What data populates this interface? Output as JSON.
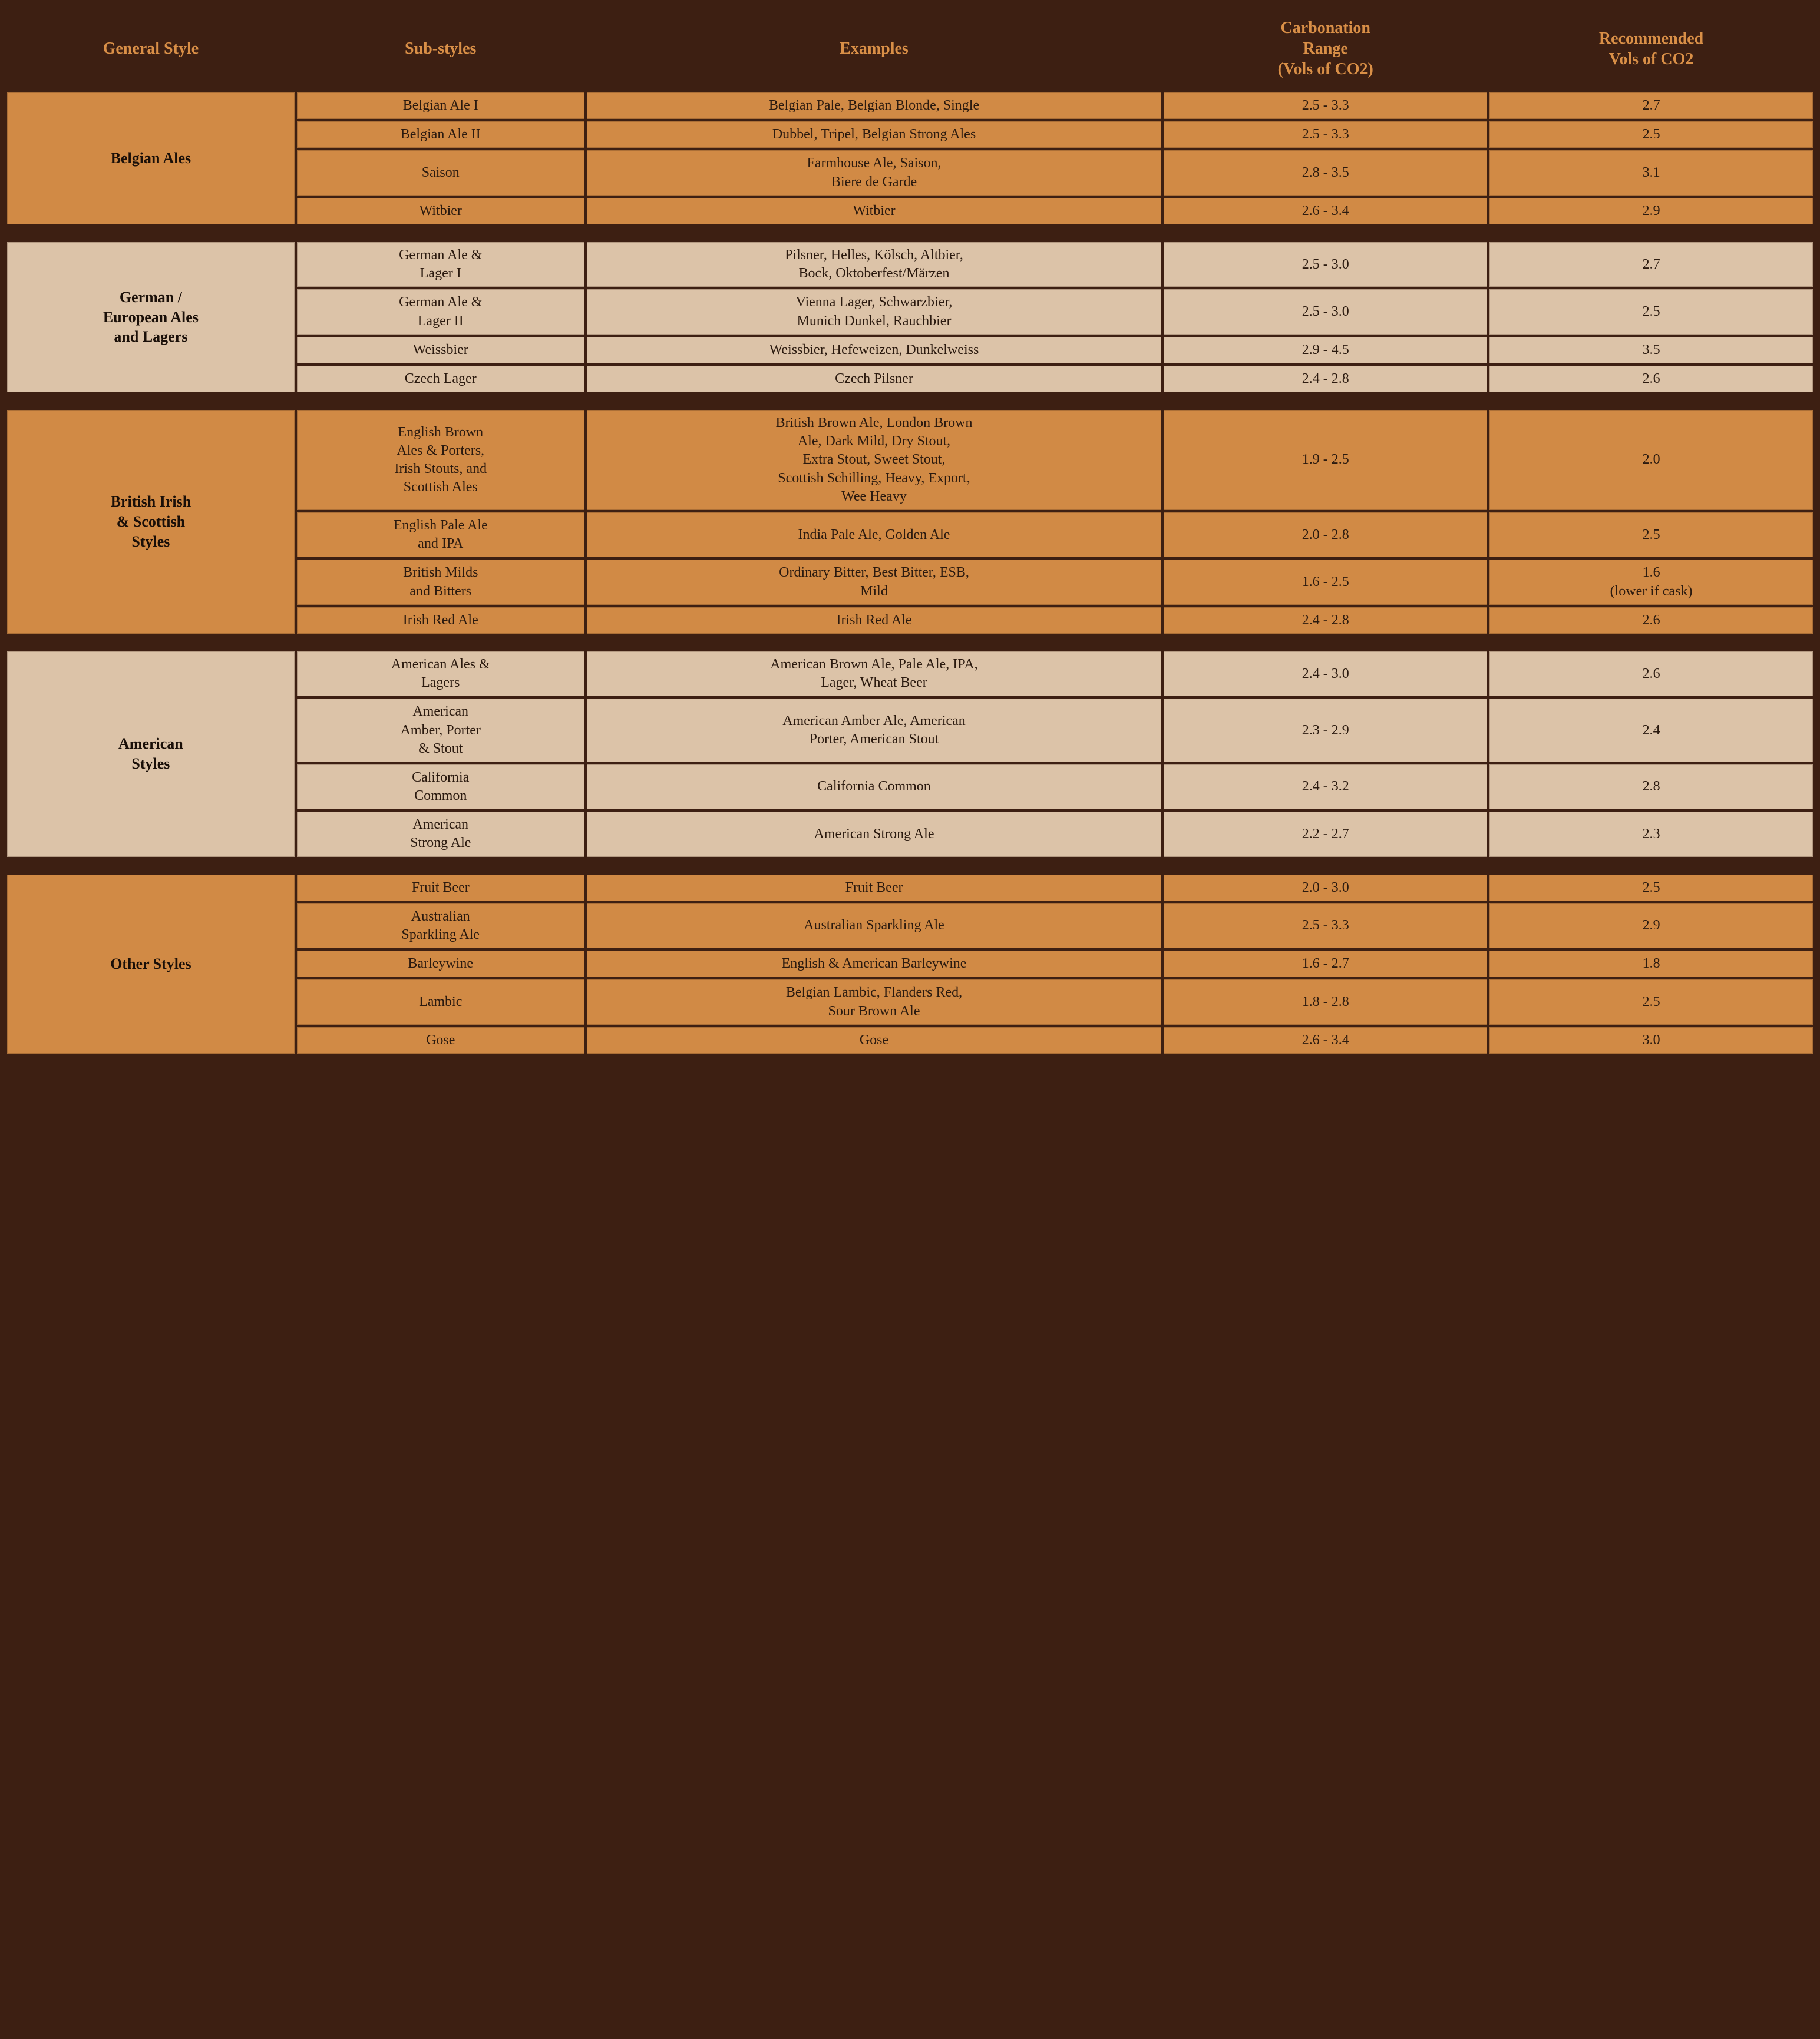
{
  "headers": {
    "general_style": "General Style",
    "sub_styles": "Sub-styles",
    "examples": "Examples",
    "carbonation_range": "Carbonation\nRange\n(Vols of CO2)",
    "recommended": "Recommended\nVols of CO2"
  },
  "colors": {
    "background": "#3d1f12",
    "header_text": "#d98f47",
    "orange_row": "#d18a45",
    "cream_row": "#dcc3a8",
    "cell_text": "#2b1a0f"
  },
  "sections": [
    {
      "style": "Belgian Ales",
      "shade": "orange",
      "rows": [
        {
          "sub": "Belgian Ale I",
          "ex": "Belgian Pale, Belgian Blonde, Single",
          "range": "2.5 - 3.3",
          "rec": "2.7"
        },
        {
          "sub": "Belgian Ale II",
          "ex": "Dubbel, Tripel, Belgian Strong Ales",
          "range": "2.5 - 3.3",
          "rec": "2.5"
        },
        {
          "sub": "Saison",
          "ex": "Farmhouse Ale, Saison,\nBiere de Garde",
          "range": "2.8 - 3.5",
          "rec": "3.1"
        },
        {
          "sub": "Witbier",
          "ex": "Witbier",
          "range": "2.6 - 3.4",
          "rec": "2.9"
        }
      ]
    },
    {
      "style": "German /\nEuropean Ales\nand Lagers",
      "shade": "cream",
      "rows": [
        {
          "sub": "German Ale &\nLager I",
          "ex": "Pilsner, Helles, Kölsch, Altbier,\nBock, Oktoberfest/Märzen",
          "range": "2.5 - 3.0",
          "rec": "2.7"
        },
        {
          "sub": "German Ale &\nLager II",
          "ex": "Vienna Lager, Schwarzbier,\nMunich Dunkel, Rauchbier",
          "range": "2.5 - 3.0",
          "rec": "2.5"
        },
        {
          "sub": "Weissbier",
          "ex": "Weissbier, Hefeweizen, Dunkelweiss",
          "range": "2.9 - 4.5",
          "rec": "3.5"
        },
        {
          "sub": "Czech Lager",
          "ex": "Czech Pilsner",
          "range": "2.4 - 2.8",
          "rec": "2.6"
        }
      ]
    },
    {
      "style": "British Irish\n& Scottish\nStyles",
      "shade": "orange",
      "rows": [
        {
          "sub": "English Brown\nAles & Porters,\nIrish Stouts, and\nScottish Ales",
          "ex": "British Brown Ale, London Brown\nAle, Dark Mild, Dry Stout,\nExtra Stout, Sweet Stout,\nScottish Schilling, Heavy, Export,\nWee Heavy",
          "range": "1.9 - 2.5",
          "rec": "2.0"
        },
        {
          "sub": "English Pale Ale\nand IPA",
          "ex": "India Pale Ale, Golden Ale",
          "range": "2.0 - 2.8",
          "rec": "2.5"
        },
        {
          "sub": "British Milds\nand Bitters",
          "ex": "Ordinary Bitter, Best Bitter, ESB,\nMild",
          "range": "1.6 - 2.5",
          "rec": "1.6\n(lower if cask)"
        },
        {
          "sub": "Irish Red Ale",
          "ex": "Irish Red Ale",
          "range": "2.4 - 2.8",
          "rec": "2.6"
        }
      ]
    },
    {
      "style": "American\nStyles",
      "shade": "cream",
      "rows": [
        {
          "sub": "American Ales &\nLagers",
          "ex": "American Brown Ale, Pale Ale, IPA,\nLager, Wheat Beer",
          "range": "2.4 - 3.0",
          "rec": "2.6"
        },
        {
          "sub": "American\nAmber, Porter\n& Stout",
          "ex": "American Amber Ale, American\nPorter, American Stout",
          "range": "2.3 - 2.9",
          "rec": "2.4"
        },
        {
          "sub": "California\nCommon",
          "ex": "California Common",
          "range": "2.4 - 3.2",
          "rec": "2.8"
        },
        {
          "sub": "American\nStrong Ale",
          "ex": "American Strong Ale",
          "range": "2.2 - 2.7",
          "rec": "2.3"
        }
      ]
    },
    {
      "style": "Other Styles",
      "shade": "orange",
      "rows": [
        {
          "sub": "Fruit Beer",
          "ex": "Fruit Beer",
          "range": "2.0 - 3.0",
          "rec": "2.5"
        },
        {
          "sub": "Australian\nSparkling Ale",
          "ex": "Australian Sparkling Ale",
          "range": "2.5 - 3.3",
          "rec": "2.9"
        },
        {
          "sub": "Barleywine",
          "ex": "English & American Barleywine",
          "range": "1.6 - 2.7",
          "rec": "1.8"
        },
        {
          "sub": "Lambic",
          "ex": "Belgian Lambic, Flanders Red,\nSour Brown Ale",
          "range": "1.8 - 2.8",
          "rec": "2.5"
        },
        {
          "sub": "Gose",
          "ex": "Gose",
          "range": "2.6 - 3.4",
          "rec": "3.0"
        }
      ]
    }
  ]
}
